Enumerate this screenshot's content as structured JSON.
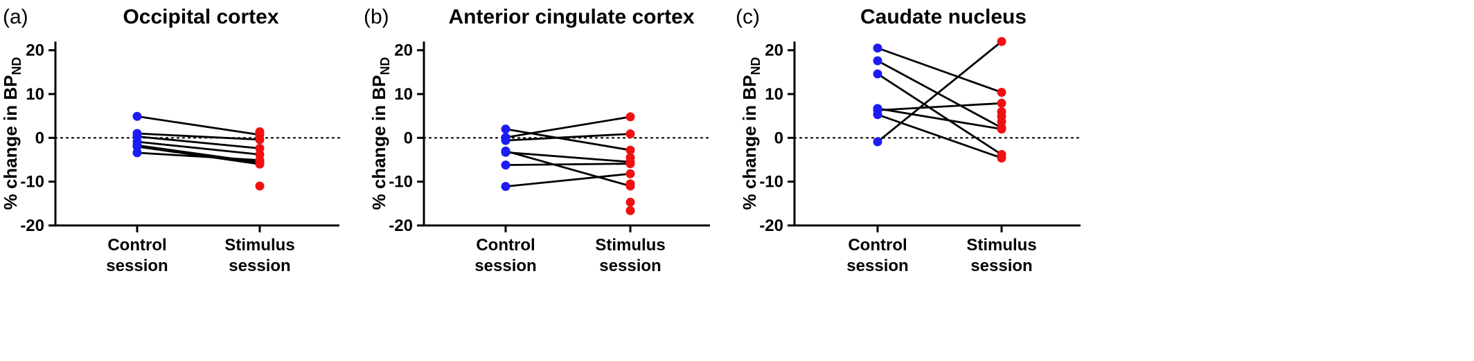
{
  "figure": {
    "panels": [
      "a",
      "b",
      "c"
    ]
  },
  "chart_data": [
    {
      "type": "scatter",
      "panel_letter": "(a)",
      "title": "Occipital cortex",
      "ylabel": "% change in BP",
      "ylabel_subscript": "ND",
      "categories": [
        "Control session",
        "Stimulus session"
      ],
      "category_lines": [
        [
          "Control",
          "session"
        ],
        [
          "Stimulus",
          "session"
        ]
      ],
      "ylim": [
        -20,
        22
      ],
      "yticks": [
        -20,
        -10,
        0,
        10,
        20
      ],
      "reference_line": 0,
      "colors": {
        "control": "#1c1cf2",
        "stimulus": "#ee1111",
        "line": "#000000"
      },
      "pairs": [
        [
          4.9,
          0.7
        ],
        [
          1.0,
          -0.4
        ],
        [
          0.3,
          -2.4
        ],
        [
          -0.9,
          -3.8
        ],
        [
          -1.7,
          -5.6
        ],
        [
          -2.0,
          -6.0
        ],
        [
          -3.4,
          -5.1
        ]
      ],
      "unpaired_stimulus": [
        1.4,
        -11.0
      ]
    },
    {
      "type": "scatter",
      "panel_letter": "(b)",
      "title": "Anterior cingulate cortex",
      "ylabel": "% change in BP",
      "ylabel_subscript": "ND",
      "categories": [
        "Control session",
        "Stimulus session"
      ],
      "category_lines": [
        [
          "Control",
          "session"
        ],
        [
          "Stimulus",
          "session"
        ]
      ],
      "ylim": [
        -20,
        22
      ],
      "yticks": [
        -20,
        -10,
        0,
        10,
        20
      ],
      "reference_line": 0,
      "colors": {
        "control": "#1c1cf2",
        "stimulus": "#ee1111",
        "line": "#000000"
      },
      "pairs": [
        [
          2.0,
          -2.8
        ],
        [
          0.1,
          4.8
        ],
        [
          -0.6,
          0.9
        ],
        [
          -3.0,
          -11.0
        ],
        [
          -3.3,
          -5.5
        ],
        [
          -6.2,
          -5.9
        ],
        [
          -11.1,
          -8.2
        ]
      ],
      "unpaired_stimulus": [
        -4.5,
        -10.5,
        -14.7,
        -16.6
      ]
    },
    {
      "type": "scatter",
      "panel_letter": "(c)",
      "title": "Caudate nucleus",
      "ylabel": "% change in BP",
      "ylabel_subscript": "ND",
      "categories": [
        "Control session",
        "Stimulus session"
      ],
      "category_lines": [
        [
          "Control",
          "session"
        ],
        [
          "Stimulus",
          "session"
        ]
      ],
      "ylim": [
        -20,
        22
      ],
      "yticks": [
        -20,
        -10,
        0,
        10,
        20
      ],
      "reference_line": 0,
      "colors": {
        "control": "#1c1cf2",
        "stimulus": "#ee1111",
        "line": "#000000"
      },
      "pairs": [
        [
          20.5,
          10.4
        ],
        [
          17.6,
          2.3
        ],
        [
          14.6,
          -3.8
        ],
        [
          6.7,
          2.0
        ],
        [
          6.3,
          7.9
        ],
        [
          5.3,
          -4.6
        ],
        [
          -0.9,
          22.0
        ]
      ],
      "unpaired_stimulus": [
        6.0,
        4.9,
        3.7
      ]
    }
  ]
}
